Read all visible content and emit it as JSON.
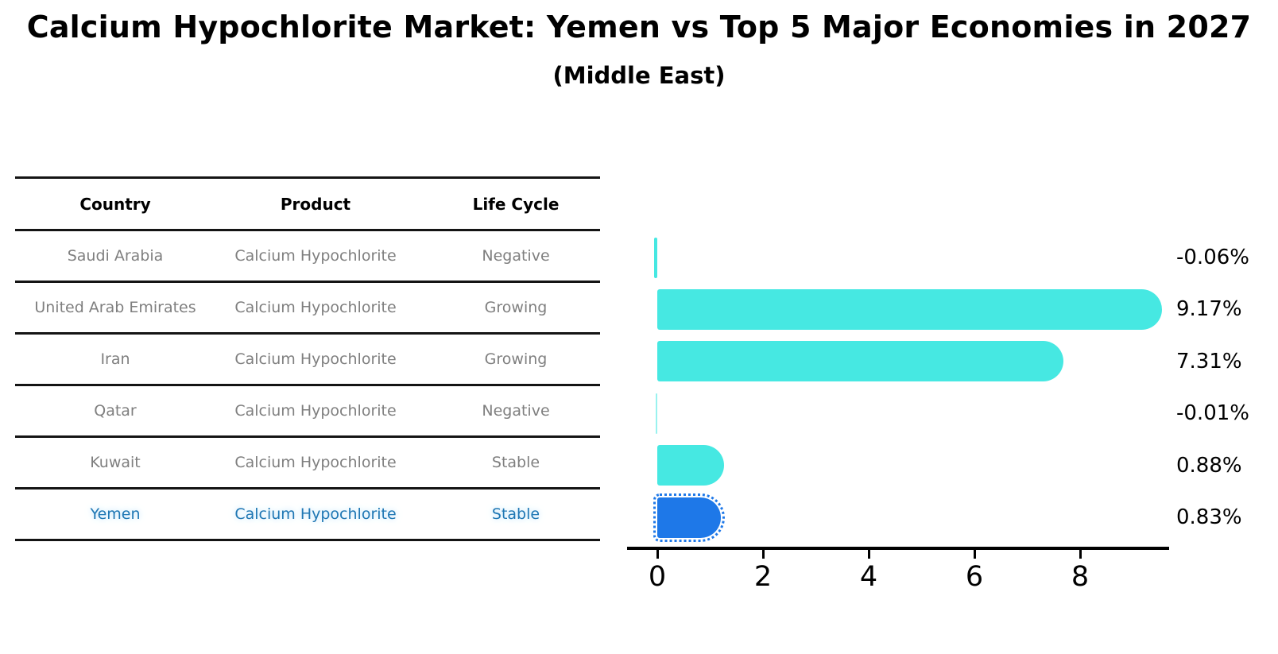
{
  "title": "Calcium Hypochlorite Market: Yemen vs Top 5 Major Economies in 2027",
  "subtitle": "(Middle East)",
  "table": {
    "headers": [
      "Country",
      "Product",
      "Life Cycle"
    ],
    "rows": [
      {
        "country": "Saudi Arabia",
        "product": "Calcium Hypochlorite",
        "life_cycle": "Negative",
        "highlight": false
      },
      {
        "country": "United Arab Emirates",
        "product": "Calcium Hypochlorite",
        "life_cycle": "Growing",
        "highlight": false
      },
      {
        "country": "Iran",
        "product": "Calcium Hypochlorite",
        "life_cycle": "Growing",
        "highlight": false
      },
      {
        "country": "Qatar",
        "product": "Calcium Hypochlorite",
        "life_cycle": "Negative",
        "highlight": false
      },
      {
        "country": "Kuwait",
        "product": "Calcium Hypochlorite",
        "life_cycle": "Stable",
        "highlight": false
      },
      {
        "country": "Yemen",
        "product": "Calcium Hypochlorite",
        "life_cycle": "Stable",
        "highlight": true
      }
    ]
  },
  "chart_data": {
    "type": "bar",
    "orientation": "horizontal",
    "categories": [
      "Saudi Arabia",
      "United Arab Emirates",
      "Iran",
      "Qatar",
      "Kuwait",
      "Yemen"
    ],
    "values": [
      -0.06,
      9.17,
      7.31,
      -0.01,
      0.88,
      0.83
    ],
    "value_labels": [
      "-0.06%",
      "9.17%",
      "7.31%",
      "-0.01%",
      "0.88%",
      "0.83%"
    ],
    "x_ticks": [
      0,
      2,
      4,
      6,
      8
    ],
    "xlim": [
      -0.6,
      9.7
    ],
    "grid": false,
    "legend": false,
    "highlight_index": 5,
    "bar_color": "#46E8E2",
    "highlight_color": "#1E78E8"
  },
  "colors": {
    "text": "#000000",
    "muted_text": "#7f7f7f",
    "highlight_text": "#1f77b4",
    "rule": "#141414"
  }
}
